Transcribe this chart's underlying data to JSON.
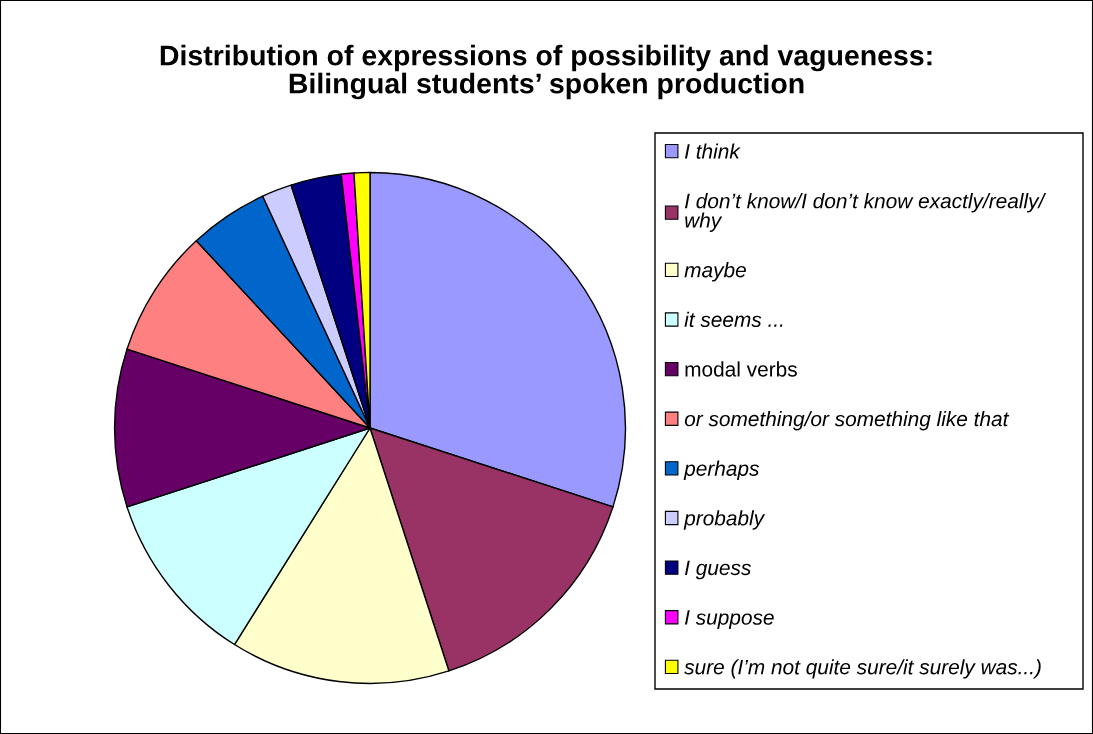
{
  "chart_data": {
    "type": "pie",
    "title": "Distribution of expressions of possibility and vagueness:",
    "subtitle": "Bilingual students’ spoken production",
    "categories": [
      "I think",
      "I don’t know/I don’t know exactly/really/why",
      "maybe",
      "it seems ...",
      "modal verbs",
      "or something/or something like that",
      "perhaps",
      "probably",
      "I guess",
      "I suppose",
      "sure (I’m not quite sure/it surely was...)"
    ],
    "values": [
      30.0,
      15.0,
      13.9,
      11.1,
      10.0,
      8.1,
      5.0,
      1.9,
      3.2,
      0.8,
      1.0
    ],
    "colors": [
      "#9999ff",
      "#993366",
      "#ffffcc",
      "#ccffff",
      "#660066",
      "#ff8080",
      "#0066cc",
      "#ccccff",
      "#000080",
      "#ff00ff",
      "#ffff00"
    ],
    "legend": "right"
  }
}
